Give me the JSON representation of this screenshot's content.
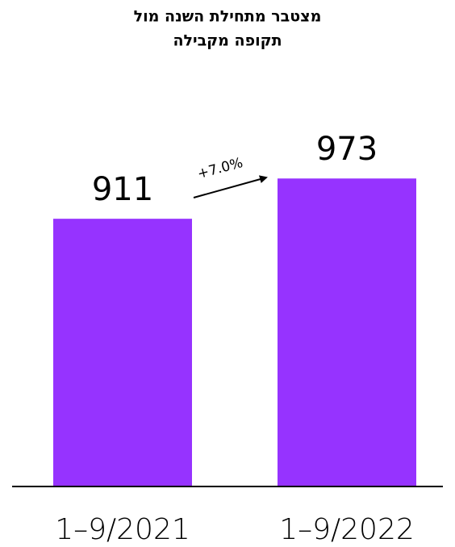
{
  "chart_data": {
    "type": "bar",
    "title": [
      "מצטבר מתחילת השנה מול",
      "תקופה מקבילה"
    ],
    "categories": [
      "1–9/2021",
      "1–9/2022"
    ],
    "values": [
      911,
      973
    ],
    "color": "#9633ff",
    "ylim": [
      500,
      1100
    ],
    "annotation": "+7.0%"
  }
}
